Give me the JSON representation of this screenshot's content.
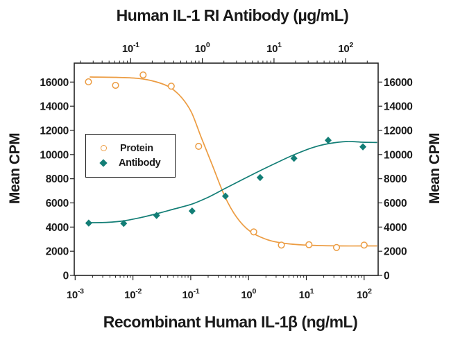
{
  "chart_data": {
    "type": "scatter",
    "title": "Human IL-1 RI Antibody (µg/mL)",
    "x_top": {
      "label": "Human IL-1 RI Antibody (µg/mL)",
      "scale": "log",
      "tick_exponents": [
        -1,
        0,
        1,
        2
      ],
      "range_approx": [
        0.016,
        285
      ],
      "units": "µg/mL"
    },
    "x_bottom": {
      "label": "Recombinant Human IL-1β (ng/mL)",
      "scale": "log",
      "tick_exponents": [
        -3,
        -2,
        -1,
        0,
        1,
        2
      ],
      "range_approx": [
        0.001,
        175
      ],
      "units": "ng/mL"
    },
    "y_left": {
      "label": "Mean CPM",
      "ticks": [
        0,
        2000,
        4000,
        6000,
        8000,
        10000,
        12000,
        14000,
        16000
      ],
      "range": [
        0,
        17550
      ]
    },
    "y_right": {
      "label": "Mean CPM",
      "ticks": [
        0,
        2000,
        4000,
        6000,
        8000,
        10000,
        12000,
        14000,
        16000
      ],
      "range": [
        0,
        17550
      ]
    },
    "legend": {
      "items": [
        "Protein",
        "Antibody"
      ],
      "position": "middle-left"
    },
    "grid": false,
    "series": [
      {
        "name": "Protein",
        "axis": "bottom",
        "marker": "open-circle",
        "color": "#EC9C42",
        "points": [
          [
            0.0017,
            16020
          ],
          [
            0.005,
            15730
          ],
          [
            0.015,
            16590
          ],
          [
            0.046,
            15660
          ],
          [
            0.137,
            10680
          ],
          [
            1.23,
            3600
          ],
          [
            3.7,
            2510
          ],
          [
            11.1,
            2540
          ],
          [
            33.3,
            2310
          ],
          [
            100,
            2510
          ]
        ],
        "fit_curve": [
          [
            0.00182,
            16420
          ],
          [
            0.00507,
            16390
          ],
          [
            0.0126,
            16300
          ],
          [
            0.0252,
            16020
          ],
          [
            0.0437,
            15560
          ],
          [
            0.07,
            14700
          ],
          [
            0.103,
            13490
          ],
          [
            0.152,
            11420
          ],
          [
            0.236,
            9130
          ],
          [
            0.389,
            6540
          ],
          [
            0.622,
            4820
          ],
          [
            1.05,
            3670
          ],
          [
            2.1,
            2960
          ],
          [
            4.43,
            2640
          ],
          [
            11.0,
            2500
          ],
          [
            38.2,
            2440
          ],
          [
            165,
            2440
          ]
        ]
      },
      {
        "name": "Antibody",
        "axis": "top",
        "marker": "filled-diamond",
        "color": "#137E76",
        "points": [
          [
            0.026,
            4330
          ],
          [
            0.08,
            4300
          ],
          [
            0.23,
            4960
          ],
          [
            0.72,
            5330
          ],
          [
            2.1,
            6560
          ],
          [
            6.4,
            8100
          ],
          [
            19,
            9690
          ],
          [
            57,
            11180
          ],
          [
            174,
            10640
          ]
        ],
        "fit_curve": [
          [
            0.0255,
            4360
          ],
          [
            0.0476,
            4390
          ],
          [
            0.0795,
            4510
          ],
          [
            0.139,
            4790
          ],
          [
            0.232,
            5110
          ],
          [
            0.414,
            5510
          ],
          [
            0.722,
            5910
          ],
          [
            1.23,
            6490
          ],
          [
            2.06,
            7180
          ],
          [
            3.68,
            7950
          ],
          [
            6.42,
            8670
          ],
          [
            11.2,
            9360
          ],
          [
            19.1,
            9990
          ],
          [
            34.2,
            10570
          ],
          [
            58.3,
            10910
          ],
          [
            104,
            11080
          ],
          [
            174,
            11020
          ],
          [
            270,
            11000
          ]
        ]
      }
    ]
  }
}
